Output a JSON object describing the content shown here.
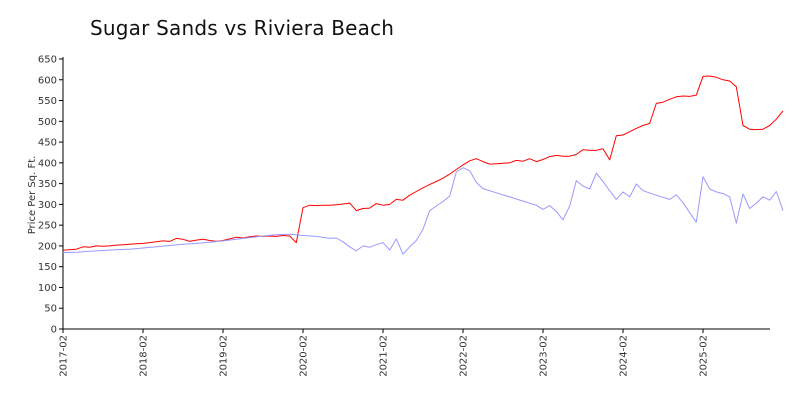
{
  "chart_data": {
    "type": "line",
    "title": "Sugar Sands vs Riviera Beach",
    "xlabel": "",
    "ylabel": "Price Per Sq. Ft.",
    "ylim": [
      0,
      650
    ],
    "xlim": [
      "2017-02",
      "2025-11"
    ],
    "yticks": [
      0,
      50,
      100,
      150,
      200,
      250,
      300,
      350,
      400,
      450,
      500,
      550,
      600,
      650
    ],
    "xticks": [
      "2017-02",
      "2018-02",
      "2019-02",
      "2020-02",
      "2021-02",
      "2022-02",
      "2023-02",
      "2024-02",
      "2025-02"
    ],
    "grid": false,
    "legend": "none",
    "series": [
      {
        "color": "#ff0000",
        "points": [
          [
            "2017-02",
            190
          ],
          [
            "2017-03",
            191
          ],
          [
            "2017-04",
            192
          ],
          [
            "2017-05",
            198
          ],
          [
            "2017-06",
            197
          ],
          [
            "2017-07",
            200
          ],
          [
            "2017-08",
            199
          ],
          [
            "2017-09",
            200
          ],
          [
            "2017-10",
            202
          ],
          [
            "2017-11",
            203
          ],
          [
            "2017-12",
            204
          ],
          [
            "2018-01",
            205
          ],
          [
            "2018-02",
            206
          ],
          [
            "2018-03",
            208
          ],
          [
            "2018-04",
            210
          ],
          [
            "2018-05",
            212
          ],
          [
            "2018-06",
            211
          ],
          [
            "2018-07",
            218
          ],
          [
            "2018-08",
            216
          ],
          [
            "2018-09",
            211
          ],
          [
            "2018-10",
            214
          ],
          [
            "2018-11",
            216
          ],
          [
            "2018-12",
            213
          ],
          [
            "2019-01",
            211
          ],
          [
            "2019-02",
            213
          ],
          [
            "2019-03",
            217
          ],
          [
            "2019-04",
            221
          ],
          [
            "2019-05",
            219
          ],
          [
            "2019-06",
            222
          ],
          [
            "2019-07",
            224
          ],
          [
            "2019-08",
            223
          ],
          [
            "2019-09",
            224
          ],
          [
            "2019-10",
            223
          ],
          [
            "2019-11",
            225
          ],
          [
            "2019-12",
            224
          ],
          [
            "2020-01",
            208
          ],
          [
            "2020-02",
            292
          ],
          [
            "2020-03",
            298
          ],
          [
            "2020-04",
            297
          ],
          [
            "2020-05",
            298
          ],
          [
            "2020-06",
            298
          ],
          [
            "2020-07",
            299
          ],
          [
            "2020-08",
            301
          ],
          [
            "2020-09",
            303
          ],
          [
            "2020-10",
            285
          ],
          [
            "2020-11",
            290
          ],
          [
            "2020-12",
            291
          ],
          [
            "2021-01",
            302
          ],
          [
            "2021-02",
            298
          ],
          [
            "2021-03",
            300
          ],
          [
            "2021-04",
            312
          ],
          [
            "2021-05",
            310
          ],
          [
            "2021-06",
            322
          ],
          [
            "2021-07",
            331
          ],
          [
            "2021-08",
            340
          ],
          [
            "2021-09",
            348
          ],
          [
            "2021-10",
            355
          ],
          [
            "2021-11",
            363
          ],
          [
            "2021-12",
            373
          ],
          [
            "2022-01",
            384
          ],
          [
            "2022-02",
            395
          ],
          [
            "2022-03",
            405
          ],
          [
            "2022-04",
            410
          ],
          [
            "2022-05",
            403
          ],
          [
            "2022-06",
            397
          ],
          [
            "2022-07",
            398
          ],
          [
            "2022-08",
            399
          ],
          [
            "2022-09",
            400
          ],
          [
            "2022-10",
            406
          ],
          [
            "2022-11",
            404
          ],
          [
            "2022-12",
            410
          ],
          [
            "2023-01",
            403
          ],
          [
            "2023-02",
            408
          ],
          [
            "2023-03",
            415
          ],
          [
            "2023-04",
            418
          ],
          [
            "2023-05",
            416
          ],
          [
            "2023-06",
            416
          ],
          [
            "2023-07",
            420
          ],
          [
            "2023-08",
            432
          ],
          [
            "2023-09",
            430
          ],
          [
            "2023-10",
            430
          ],
          [
            "2023-11",
            434
          ],
          [
            "2023-12",
            407
          ],
          [
            "2024-01",
            465
          ],
          [
            "2024-02",
            467
          ],
          [
            "2024-03",
            475
          ],
          [
            "2024-04",
            483
          ],
          [
            "2024-05",
            490
          ],
          [
            "2024-06",
            495
          ],
          [
            "2024-07",
            543
          ],
          [
            "2024-08",
            546
          ],
          [
            "2024-09",
            553
          ],
          [
            "2024-10",
            559
          ],
          [
            "2024-11",
            561
          ],
          [
            "2024-12",
            560
          ],
          [
            "2025-01",
            563
          ],
          [
            "2025-02",
            608
          ],
          [
            "2025-03",
            609
          ],
          [
            "2025-04",
            606
          ],
          [
            "2025-05",
            600
          ],
          [
            "2025-06",
            597
          ],
          [
            "2025-07",
            583
          ],
          [
            "2025-08",
            490
          ],
          [
            "2025-09",
            481
          ],
          [
            "2025-10",
            480
          ],
          [
            "2025-11",
            481
          ],
          [
            "2025-12",
            490
          ],
          [
            "2026-01",
            505
          ],
          [
            "2026-02",
            525
          ]
        ]
      },
      {
        "color": "#9999ff",
        "points": [
          [
            "2017-02",
            184
          ],
          [
            "2017-04",
            185
          ],
          [
            "2017-06",
            187
          ],
          [
            "2017-08",
            189
          ],
          [
            "2017-10",
            191
          ],
          [
            "2017-12",
            192
          ],
          [
            "2018-02",
            195
          ],
          [
            "2018-04",
            198
          ],
          [
            "2018-06",
            201
          ],
          [
            "2018-08",
            204
          ],
          [
            "2018-10",
            206
          ],
          [
            "2018-12",
            209
          ],
          [
            "2019-02",
            212
          ],
          [
            "2019-04",
            216
          ],
          [
            "2019-06",
            220
          ],
          [
            "2019-08",
            224
          ],
          [
            "2019-10",
            227
          ],
          [
            "2019-12",
            228
          ],
          [
            "2020-02",
            225
          ],
          [
            "2020-04",
            223
          ],
          [
            "2020-06",
            218
          ],
          [
            "2020-07",
            219
          ],
          [
            "2020-08",
            210
          ],
          [
            "2020-09",
            198
          ],
          [
            "2020-10",
            188
          ],
          [
            "2020-11",
            200
          ],
          [
            "2020-12",
            197
          ],
          [
            "2021-01",
            203
          ],
          [
            "2021-02",
            208
          ],
          [
            "2021-03",
            190
          ],
          [
            "2021-04",
            217
          ],
          [
            "2021-05",
            180
          ],
          [
            "2021-06",
            198
          ],
          [
            "2021-07",
            213
          ],
          [
            "2021-08",
            240
          ],
          [
            "2021-09",
            285
          ],
          [
            "2021-10",
            296
          ],
          [
            "2021-11",
            307
          ],
          [
            "2021-12",
            320
          ],
          [
            "2022-01",
            378
          ],
          [
            "2022-02",
            388
          ],
          [
            "2022-03",
            381
          ],
          [
            "2022-04",
            353
          ],
          [
            "2022-05",
            338
          ],
          [
            "2022-07",
            328
          ],
          [
            "2022-09",
            318
          ],
          [
            "2022-11",
            308
          ],
          [
            "2023-01",
            298
          ],
          [
            "2023-02",
            288
          ],
          [
            "2023-03",
            297
          ],
          [
            "2023-04",
            283
          ],
          [
            "2023-05",
            263
          ],
          [
            "2023-06",
            296
          ],
          [
            "2023-07",
            357
          ],
          [
            "2023-08",
            344
          ],
          [
            "2023-09",
            337
          ],
          [
            "2023-10",
            375
          ],
          [
            "2023-11",
            355
          ],
          [
            "2023-12",
            333
          ],
          [
            "2024-01",
            312
          ],
          [
            "2024-02",
            330
          ],
          [
            "2024-03",
            318
          ],
          [
            "2024-04",
            349
          ],
          [
            "2024-05",
            333
          ],
          [
            "2024-07",
            322
          ],
          [
            "2024-09",
            312
          ],
          [
            "2024-10",
            323
          ],
          [
            "2024-11",
            304
          ],
          [
            "2024-12",
            280
          ],
          [
            "2025-01",
            257
          ],
          [
            "2025-02",
            367
          ],
          [
            "2025-03",
            337
          ],
          [
            "2025-04",
            330
          ],
          [
            "2025-05",
            326
          ],
          [
            "2025-06",
            318
          ],
          [
            "2025-07",
            255
          ],
          [
            "2025-08",
            325
          ],
          [
            "2025-09",
            290
          ],
          [
            "2025-10",
            303
          ],
          [
            "2025-11",
            318
          ],
          [
            "2025-12",
            310
          ],
          [
            "2026-01",
            331
          ],
          [
            "2026-02",
            285
          ]
        ]
      }
    ]
  }
}
